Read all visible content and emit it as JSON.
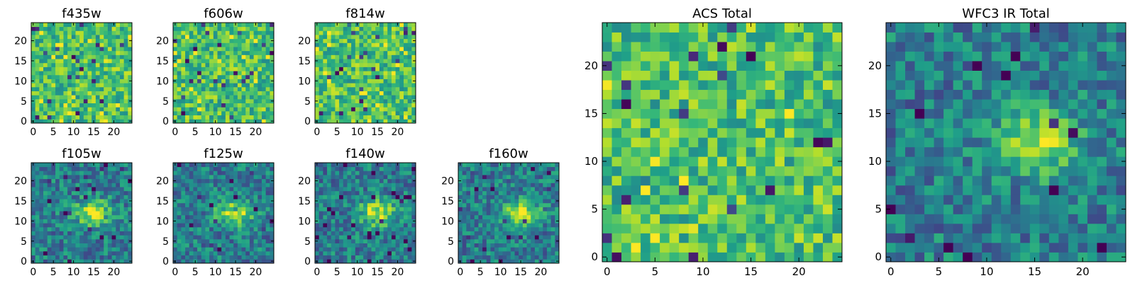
{
  "chart_data": [
    {
      "type": "heatmap",
      "title": "f435w",
      "x_ticks": [
        0,
        5,
        10,
        15,
        20
      ],
      "y_ticks": [
        0,
        5,
        10,
        15,
        20
      ],
      "xlim": [
        -0.5,
        24.5
      ],
      "ylim": [
        -0.5,
        24.5
      ],
      "grid": false,
      "colormap": "viridis",
      "pixel_grid": [
        25,
        25
      ],
      "seed": 11,
      "structure": "noise, no central source"
    },
    {
      "type": "heatmap",
      "title": "f606w",
      "x_ticks": [
        0,
        5,
        10,
        15,
        20
      ],
      "y_ticks": [
        0,
        5,
        10,
        15,
        20
      ],
      "xlim": [
        -0.5,
        24.5
      ],
      "ylim": [
        -0.5,
        24.5
      ],
      "grid": false,
      "colormap": "viridis",
      "pixel_grid": [
        25,
        25
      ],
      "seed": 23,
      "structure": "noise, no central source"
    },
    {
      "type": "heatmap",
      "title": "f814w",
      "x_ticks": [
        0,
        5,
        10,
        15,
        20
      ],
      "y_ticks": [
        0,
        5,
        10,
        15,
        20
      ],
      "xlim": [
        -0.5,
        24.5
      ],
      "ylim": [
        -0.5,
        24.5
      ],
      "grid": false,
      "colormap": "viridis",
      "pixel_grid": [
        25,
        25
      ],
      "seed": 37,
      "structure": "noise, no central source"
    },
    {
      "type": "heatmap",
      "title": "f105w",
      "x_ticks": [
        0,
        5,
        10,
        15,
        20
      ],
      "y_ticks": [
        0,
        5,
        10,
        15,
        20
      ],
      "xlim": [
        -0.5,
        24.5
      ],
      "ylim": [
        -0.5,
        24.5
      ],
      "grid": false,
      "colormap": "viridis",
      "pixel_grid": [
        25,
        25
      ],
      "seed": 41,
      "structure": "bright blob near x=15, y=12"
    },
    {
      "type": "heatmap",
      "title": "f125w",
      "x_ticks": [
        0,
        5,
        10,
        15,
        20
      ],
      "y_ticks": [
        0,
        5,
        10,
        15,
        20
      ],
      "xlim": [
        -0.5,
        24.5
      ],
      "ylim": [
        -0.5,
        24.5
      ],
      "grid": false,
      "colormap": "viridis",
      "pixel_grid": [
        25,
        25
      ],
      "seed": 53,
      "structure": "bright blob near x=15, y=12"
    },
    {
      "type": "heatmap",
      "title": "f140w",
      "x_ticks": [
        0,
        5,
        10,
        15,
        20
      ],
      "y_ticks": [
        0,
        5,
        10,
        15,
        20
      ],
      "xlim": [
        -0.5,
        24.5
      ],
      "ylim": [
        -0.5,
        24.5
      ],
      "grid": false,
      "colormap": "viridis",
      "pixel_grid": [
        25,
        25
      ],
      "seed": 67,
      "structure": "bright blob near x=15, y=12"
    },
    {
      "type": "heatmap",
      "title": "f160w",
      "x_ticks": [
        0,
        5,
        10,
        15,
        20
      ],
      "y_ticks": [
        0,
        5,
        10,
        15,
        20
      ],
      "xlim": [
        -0.5,
        24.5
      ],
      "ylim": [
        -0.5,
        24.5
      ],
      "grid": false,
      "colormap": "viridis",
      "pixel_grid": [
        25,
        25
      ],
      "seed": 79,
      "structure": "bright blob near x=15, y=12"
    },
    {
      "type": "heatmap",
      "title": "ACS Total",
      "x_ticks": [
        0,
        5,
        10,
        15,
        20
      ],
      "y_ticks": [
        0,
        5,
        10,
        15,
        20
      ],
      "xlim": [
        -0.5,
        24.5
      ],
      "ylim": [
        -0.5,
        24.5
      ],
      "grid": false,
      "colormap": "viridis",
      "pixel_grid": [
        25,
        25
      ],
      "seed": 97,
      "structure": "noise, no central source"
    },
    {
      "type": "heatmap",
      "title": "WFC3 IR Total",
      "x_ticks": [
        0,
        5,
        10,
        15,
        20
      ],
      "y_ticks": [
        0,
        5,
        10,
        15,
        20
      ],
      "xlim": [
        -0.5,
        24.5
      ],
      "ylim": [
        -0.5,
        24.5
      ],
      "grid": false,
      "colormap": "viridis",
      "pixel_grid": [
        25,
        25
      ],
      "seed": 113,
      "structure": "bright blob near x=15, y=12"
    }
  ]
}
